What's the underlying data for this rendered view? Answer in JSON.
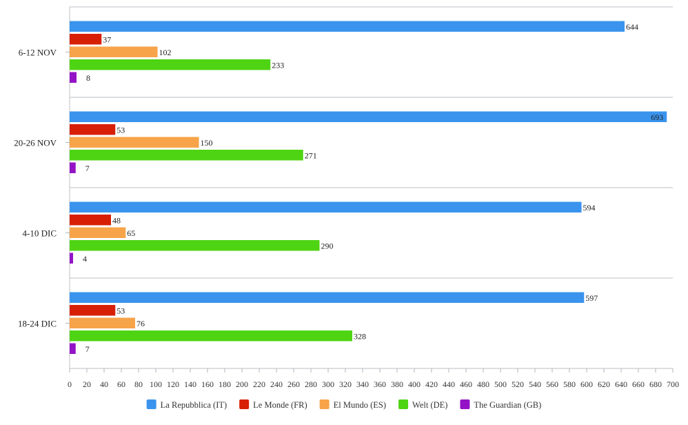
{
  "chart_data": {
    "type": "bar",
    "orientation": "horizontal",
    "categories": [
      "6-12 NOV",
      "20-26 NOV",
      "4-10 DIC",
      "18-24 DIC"
    ],
    "series": [
      {
        "name": "La Repubblica (IT)",
        "color": "#3a94ee",
        "values": [
          644,
          693,
          594,
          597
        ]
      },
      {
        "name": "Le Monde (FR)",
        "color": "#d71f06",
        "values": [
          37,
          53,
          48,
          53
        ]
      },
      {
        "name": "El Mundo (ES)",
        "color": "#f7a349",
        "values": [
          102,
          150,
          65,
          76
        ]
      },
      {
        "name": "Welt (DE)",
        "color": "#4fd414",
        "values": [
          233,
          271,
          290,
          328
        ]
      },
      {
        "name": "The Guardian (GB)",
        "color": "#9413c6",
        "values": [
          8,
          7,
          4,
          7
        ]
      }
    ],
    "xlim": [
      0,
      700
    ],
    "xticks": [
      0,
      20,
      40,
      60,
      80,
      100,
      120,
      140,
      160,
      180,
      200,
      220,
      240,
      260,
      280,
      300,
      320,
      340,
      360,
      380,
      400,
      420,
      440,
      460,
      480,
      500,
      520,
      540,
      560,
      580,
      600,
      620,
      640,
      660,
      680,
      700
    ],
    "title": "",
    "xlabel": "",
    "ylabel": "",
    "legend_position": "bottom",
    "grid": "horizontal separators between categories"
  }
}
